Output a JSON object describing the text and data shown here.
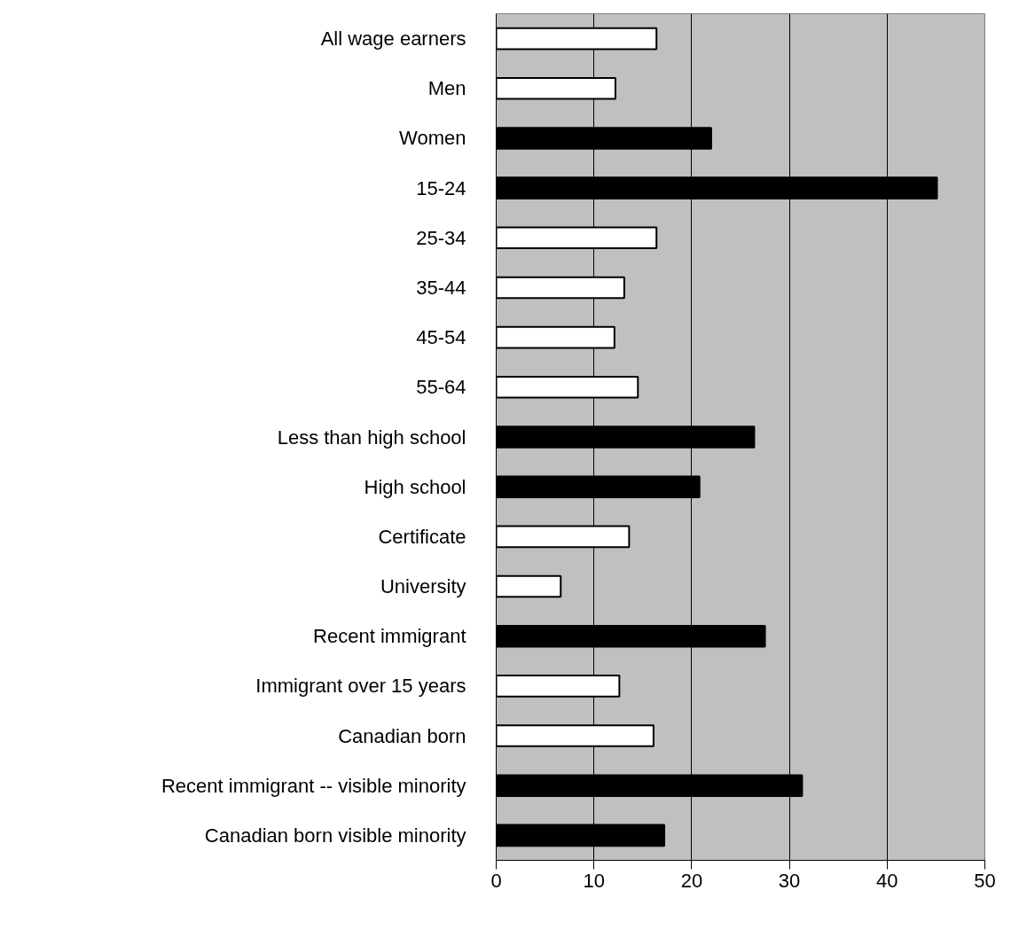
{
  "chart_data": {
    "type": "bar",
    "orientation": "horizontal",
    "categories": [
      "All wage earners",
      "Men",
      "Women",
      "15-24",
      "25-34",
      "35-44",
      "45-54",
      "55-64",
      "Less than high school",
      "High school",
      "Certificate",
      "University",
      "Recent immigrant",
      "Immigrant over 15 years",
      "Canadian born",
      "Recent immigrant -- visible minority",
      "Canadian born visible minority"
    ],
    "values": [
      16.4,
      12.2,
      22.0,
      45.1,
      16.4,
      13.1,
      12.1,
      14.5,
      26.4,
      20.8,
      13.6,
      6.6,
      27.5,
      12.6,
      16.1,
      31.3,
      17.2
    ],
    "colors": [
      "#ffffff",
      "#ffffff",
      "#000000",
      "#000000",
      "#ffffff",
      "#ffffff",
      "#ffffff",
      "#ffffff",
      "#000000",
      "#000000",
      "#ffffff",
      "#ffffff",
      "#000000",
      "#ffffff",
      "#ffffff",
      "#000000",
      "#000000"
    ],
    "xlim": [
      0,
      50
    ],
    "xticks": [
      0,
      10,
      20,
      30,
      40,
      50
    ],
    "grid": "x"
  }
}
